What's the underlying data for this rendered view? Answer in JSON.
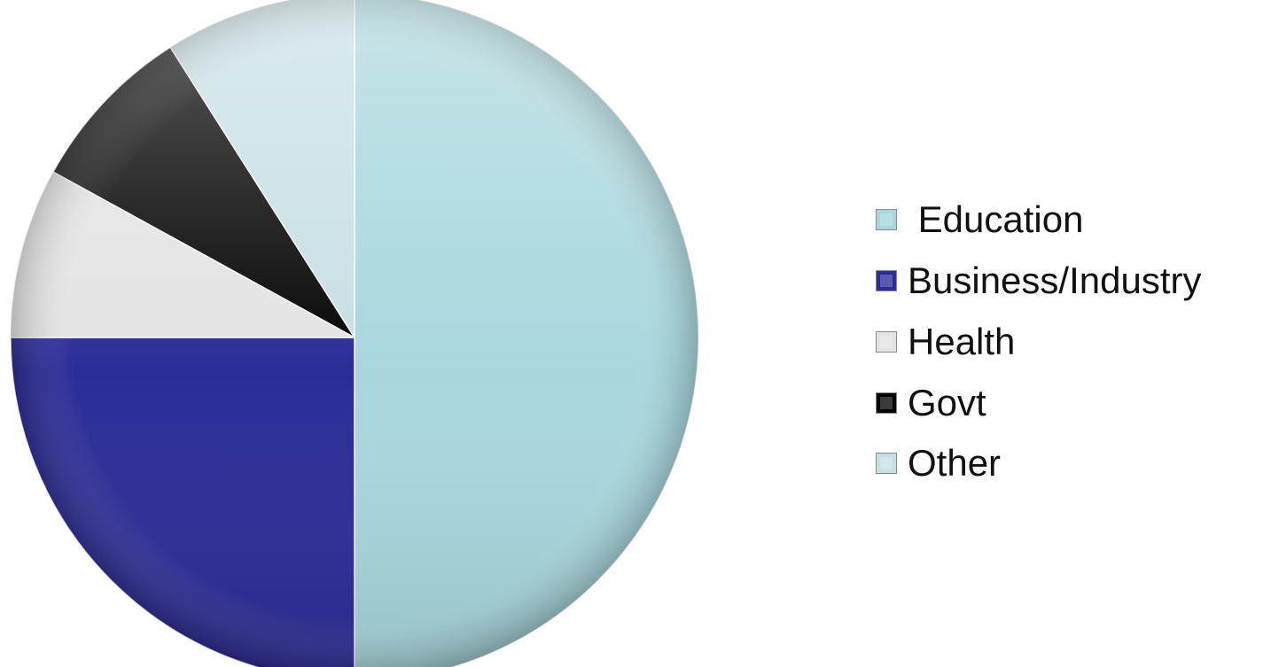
{
  "chart_data": {
    "type": "pie",
    "title": "",
    "categories": [
      "Education",
      "Business/Industry",
      "Health",
      "Govt",
      "Other"
    ],
    "display_labels": [
      " Education",
      "Business/Industry",
      "Health",
      "Govt",
      "Other"
    ],
    "values": [
      50,
      25,
      8,
      8,
      9
    ],
    "colors": [
      "#a7d7dd",
      "#2c2c98",
      "#e3e3e3",
      "#050505",
      "#c7dfe3"
    ],
    "legend_position": "right",
    "start_angle_deg": 0,
    "direction": "clockwise"
  }
}
